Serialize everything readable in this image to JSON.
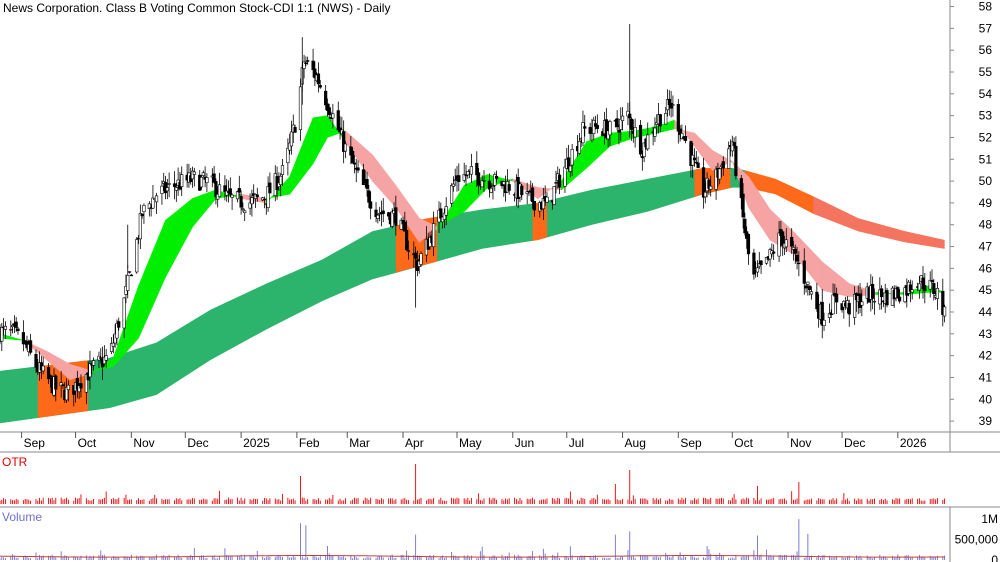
{
  "chart_data": {
    "type": "candlestick",
    "title": "News Corporation. Class B Voting Common Stock-CDI 1:1 (NWS) - Daily",
    "ylim": [
      38.5,
      58.3
    ],
    "xlim": [
      "2024-08-20",
      "2026-01-30"
    ],
    "y_ticks": [
      39,
      40,
      41,
      42,
      43,
      44,
      45,
      46,
      47,
      48,
      49,
      50,
      51,
      52,
      53,
      54,
      55,
      56,
      57,
      58
    ],
    "x_ticks": [
      {
        "label": "Sep",
        "date": "2024-09-01"
      },
      {
        "label": "Oct",
        "date": "2024-10-01"
      },
      {
        "label": "Nov",
        "date": "2024-11-01"
      },
      {
        "label": "Dec",
        "date": "2024-12-01"
      },
      {
        "label": "2025",
        "date": "2025-01-01"
      },
      {
        "label": "Feb",
        "date": "2025-02-01"
      },
      {
        "label": "Mar",
        "date": "2025-03-01"
      },
      {
        "label": "Apr",
        "date": "2025-04-01"
      },
      {
        "label": "May",
        "date": "2025-05-01"
      },
      {
        "label": "Jun",
        "date": "2025-06-01"
      },
      {
        "label": "Jul",
        "date": "2025-07-01"
      },
      {
        "label": "Aug",
        "date": "2025-08-01"
      },
      {
        "label": "Sep",
        "date": "2025-09-01"
      },
      {
        "label": "Oct",
        "date": "2025-10-01"
      },
      {
        "label": "Nov",
        "date": "2025-11-01"
      },
      {
        "label": "Dec",
        "date": "2025-12-01"
      },
      {
        "label": "2026",
        "date": "2026-01-01"
      }
    ],
    "price_path": [
      [
        "2024-08-20",
        43.1
      ],
      [
        "2024-08-28",
        43.0
      ],
      [
        "2024-09-02",
        42.6
      ],
      [
        "2024-09-10",
        41.4
      ],
      [
        "2024-09-20",
        40.5
      ],
      [
        "2024-09-27",
        40.3
      ],
      [
        "2024-10-05",
        41.0
      ],
      [
        "2024-10-12",
        41.5
      ],
      [
        "2024-10-20",
        42.0
      ],
      [
        "2024-10-28",
        44.5
      ],
      [
        "2024-11-03",
        46.8
      ],
      [
        "2024-11-07",
        48.5
      ],
      [
        "2024-11-15",
        49.4
      ],
      [
        "2024-11-25",
        49.8
      ],
      [
        "2024-12-05",
        50.1
      ],
      [
        "2024-12-15",
        49.9
      ],
      [
        "2024-12-25",
        49.2
      ],
      [
        "2025-01-05",
        49.0
      ],
      [
        "2025-01-15",
        49.3
      ],
      [
        "2025-01-25",
        50.5
      ],
      [
        "2025-02-01",
        53.0
      ],
      [
        "2025-02-05",
        55.5
      ],
      [
        "2025-02-12",
        54.8
      ],
      [
        "2025-02-20",
        53.2
      ],
      [
        "2025-02-28",
        51.5
      ],
      [
        "2025-03-08",
        50.0
      ],
      [
        "2025-03-18",
        48.6
      ],
      [
        "2025-03-28",
        48.4
      ],
      [
        "2025-04-05",
        46.8
      ],
      [
        "2025-04-09",
        46.2
      ],
      [
        "2025-04-15",
        47.2
      ],
      [
        "2025-04-22",
        48.5
      ],
      [
        "2025-05-01",
        50.2
      ],
      [
        "2025-05-10",
        50.3
      ],
      [
        "2025-05-20",
        50.0
      ],
      [
        "2025-05-30",
        49.8
      ],
      [
        "2025-06-10",
        49.2
      ],
      [
        "2025-06-20",
        48.9
      ],
      [
        "2025-07-01",
        50.8
      ],
      [
        "2025-07-10",
        52.3
      ],
      [
        "2025-07-18",
        52.5
      ],
      [
        "2025-07-26",
        52.3
      ],
      [
        "2025-08-04",
        53.0
      ],
      [
        "2025-08-12",
        51.5
      ],
      [
        "2025-08-20",
        52.8
      ],
      [
        "2025-08-28",
        53.5
      ],
      [
        "2025-09-05",
        51.8
      ],
      [
        "2025-09-15",
        49.5
      ],
      [
        "2025-09-22",
        50.2
      ],
      [
        "2025-10-01",
        51.8
      ],
      [
        "2025-10-06",
        48.8
      ],
      [
        "2025-10-12",
        45.5
      ],
      [
        "2025-10-20",
        46.2
      ],
      [
        "2025-10-28",
        47.5
      ],
      [
        "2025-11-05",
        46.5
      ],
      [
        "2025-11-12",
        45.2
      ],
      [
        "2025-11-20",
        43.8
      ],
      [
        "2025-11-28",
        44.6
      ],
      [
        "2025-12-05",
        44.2
      ],
      [
        "2025-12-15",
        44.8
      ],
      [
        "2025-12-25",
        44.7
      ],
      [
        "2026-01-05",
        45.0
      ],
      [
        "2026-01-12",
        45.5
      ],
      [
        "2026-01-20",
        45.1
      ],
      [
        "2026-01-24",
        44.8
      ],
      [
        "2026-01-27",
        43.8
      ]
    ],
    "bands": [
      {
        "kind": "long-term",
        "upper": [
          [
            "2024-08-20",
            41.3
          ],
          [
            "2024-10-20",
            41.9
          ],
          [
            "2024-11-15",
            42.6
          ],
          [
            "2024-12-15",
            44.1
          ],
          [
            "2025-01-15",
            45.3
          ],
          [
            "2025-02-15",
            46.4
          ],
          [
            "2025-03-15",
            47.7
          ],
          [
            "2025-04-15",
            48.3
          ],
          [
            "2025-05-15",
            48.7
          ],
          [
            "2025-06-15",
            49.0
          ],
          [
            "2025-07-15",
            49.6
          ],
          [
            "2025-08-15",
            50.1
          ],
          [
            "2025-09-15",
            50.6
          ],
          [
            "2025-10-01",
            50.6
          ],
          [
            "2025-10-08",
            50.5
          ]
        ],
        "lower": [
          [
            "2024-08-20",
            38.9
          ],
          [
            "2024-10-20",
            39.6
          ],
          [
            "2024-11-15",
            40.2
          ],
          [
            "2024-12-15",
            41.8
          ],
          [
            "2025-01-15",
            43.2
          ],
          [
            "2025-02-15",
            44.5
          ],
          [
            "2025-03-15",
            45.5
          ],
          [
            "2025-04-15",
            46.2
          ],
          [
            "2025-05-15",
            46.9
          ],
          [
            "2025-06-15",
            47.3
          ],
          [
            "2025-07-15",
            48.0
          ],
          [
            "2025-08-15",
            48.6
          ],
          [
            "2025-09-15",
            49.4
          ],
          [
            "2025-10-01",
            49.7
          ],
          [
            "2025-10-08",
            49.7
          ]
        ]
      },
      {
        "kind": "long-term-declining",
        "upper": [
          [
            "2025-10-08",
            50.5
          ],
          [
            "2025-10-25",
            50.1
          ],
          [
            "2025-11-15",
            49.3
          ],
          [
            "2025-12-10",
            48.3
          ],
          [
            "2026-01-05",
            47.7
          ],
          [
            "2026-01-27",
            47.3
          ]
        ],
        "lower": [
          [
            "2025-10-08",
            49.7
          ],
          [
            "2025-10-25",
            49.4
          ],
          [
            "2025-11-15",
            48.5
          ],
          [
            "2025-12-10",
            47.7
          ],
          [
            "2026-01-05",
            47.2
          ],
          [
            "2026-01-27",
            46.9
          ]
        ]
      }
    ],
    "short_band": {
      "fast": [
        [
          "2024-08-20",
          43.0
        ],
        [
          "2024-09-02",
          42.7
        ],
        [
          "2024-09-15",
          41.8
        ],
        [
          "2024-09-28",
          40.9
        ],
        [
          "2024-10-10",
          41.2
        ],
        [
          "2024-10-22",
          41.9
        ],
        [
          "2024-11-05",
          45.2
        ],
        [
          "2024-11-20",
          48.2
        ],
        [
          "2024-12-05",
          49.2
        ],
        [
          "2024-12-18",
          49.6
        ],
        [
          "2025-01-01",
          49.2
        ],
        [
          "2025-01-15",
          49.0
        ],
        [
          "2025-01-28",
          50.2
        ],
        [
          "2025-02-10",
          52.9
        ],
        [
          "2025-02-18",
          53.0
        ],
        [
          "2025-02-28",
          51.8
        ],
        [
          "2025-03-15",
          50.0
        ],
        [
          "2025-03-28",
          48.8
        ],
        [
          "2025-04-10",
          47.2
        ],
        [
          "2025-04-20",
          47.8
        ],
        [
          "2025-05-05",
          49.8
        ],
        [
          "2025-05-18",
          50.3
        ],
        [
          "2025-06-01",
          50.0
        ],
        [
          "2025-06-15",
          49.2
        ],
        [
          "2025-06-28",
          50.0
        ],
        [
          "2025-07-12",
          51.8
        ],
        [
          "2025-07-25",
          52.2
        ],
        [
          "2025-08-08",
          52.3
        ],
        [
          "2025-08-20",
          52.5
        ],
        [
          "2025-08-30",
          52.8
        ],
        [
          "2025-09-10",
          51.6
        ],
        [
          "2025-09-20",
          50.5
        ],
        [
          "2025-10-01",
          50.9
        ],
        [
          "2025-10-10",
          48.8
        ],
        [
          "2025-10-22",
          47.3
        ],
        [
          "2025-11-05",
          46.6
        ],
        [
          "2025-11-20",
          45.0
        ],
        [
          "2025-12-05",
          44.7
        ],
        [
          "2025-12-20",
          44.8
        ],
        [
          "2026-01-05",
          44.9
        ],
        [
          "2026-01-18",
          45.2
        ],
        [
          "2026-01-27",
          44.9
        ]
      ],
      "slow": [
        [
          "2024-08-20",
          42.8
        ],
        [
          "2024-09-02",
          42.7
        ],
        [
          "2024-09-15",
          42.2
        ],
        [
          "2024-09-28",
          41.6
        ],
        [
          "2024-10-10",
          41.3
        ],
        [
          "2024-10-22",
          41.5
        ],
        [
          "2024-11-05",
          42.8
        ],
        [
          "2024-11-20",
          45.6
        ],
        [
          "2024-12-05",
          47.9
        ],
        [
          "2024-12-18",
          49.2
        ],
        [
          "2025-01-01",
          49.4
        ],
        [
          "2025-01-15",
          49.2
        ],
        [
          "2025-01-28",
          49.4
        ],
        [
          "2025-02-10",
          50.8
        ],
        [
          "2025-02-18",
          52.0
        ],
        [
          "2025-02-28",
          52.3
        ],
        [
          "2025-03-15",
          51.2
        ],
        [
          "2025-03-28",
          49.8
        ],
        [
          "2025-04-10",
          48.3
        ],
        [
          "2025-04-20",
          47.9
        ],
        [
          "2025-05-05",
          48.6
        ],
        [
          "2025-05-18",
          49.7
        ],
        [
          "2025-06-01",
          50.1
        ],
        [
          "2025-06-15",
          49.7
        ],
        [
          "2025-06-28",
          49.6
        ],
        [
          "2025-07-12",
          50.6
        ],
        [
          "2025-07-25",
          51.6
        ],
        [
          "2025-08-08",
          52.0
        ],
        [
          "2025-08-20",
          52.2
        ],
        [
          "2025-08-30",
          52.4
        ],
        [
          "2025-09-10",
          52.2
        ],
        [
          "2025-09-20",
          51.4
        ],
        [
          "2025-10-01",
          50.9
        ],
        [
          "2025-10-10",
          50.2
        ],
        [
          "2025-10-22",
          48.7
        ],
        [
          "2025-11-05",
          47.6
        ],
        [
          "2025-11-20",
          46.3
        ],
        [
          "2025-12-05",
          45.3
        ],
        [
          "2025-12-20",
          44.9
        ],
        [
          "2026-01-05",
          44.8
        ],
        [
          "2026-01-18",
          44.9
        ],
        [
          "2026-01-27",
          44.9
        ]
      ]
    },
    "highlight_ranges": [
      [
        "2024-09-10",
        "2024-10-08"
      ],
      [
        "2025-03-28",
        "2025-04-20"
      ],
      [
        "2025-06-12",
        "2025-06-20"
      ],
      [
        "2025-09-10",
        "2025-09-30"
      ]
    ],
    "volume_ylim": [
      0,
      1100000
    ],
    "volume_ticks": [
      {
        "label": "1M",
        "value": 1000000
      },
      {
        "label": "500,000",
        "value": 500000
      },
      {
        "label": "0",
        "value": 0
      }
    ],
    "otr_spikes": [
      [
        "2025-02-03",
        0.7
      ],
      [
        "2025-04-08",
        1.0
      ],
      [
        "2025-07-28",
        0.5
      ],
      [
        "2025-08-05",
        0.85
      ],
      [
        "2025-10-15",
        0.45
      ],
      [
        "2025-11-07",
        0.55
      ]
    ],
    "volume_spikes": [
      [
        "2025-02-03",
        900000
      ],
      [
        "2025-02-06",
        850000
      ],
      [
        "2025-04-08",
        620000
      ],
      [
        "2025-07-28",
        620000
      ],
      [
        "2025-08-05",
        700000
      ],
      [
        "2025-10-15",
        600000
      ],
      [
        "2025-11-07",
        1000000
      ],
      [
        "2025-11-12",
        640000
      ]
    ],
    "color_green": "#2cb36c",
    "color_bright_green": "#00ee00",
    "color_orange": "#ff6a1a",
    "color_pink": "#f5a3a3",
    "color_red": "#e60000",
    "color_volume": "#7070d0"
  },
  "panels": {
    "otr_label": "OTR",
    "volume_label": "Volume"
  }
}
